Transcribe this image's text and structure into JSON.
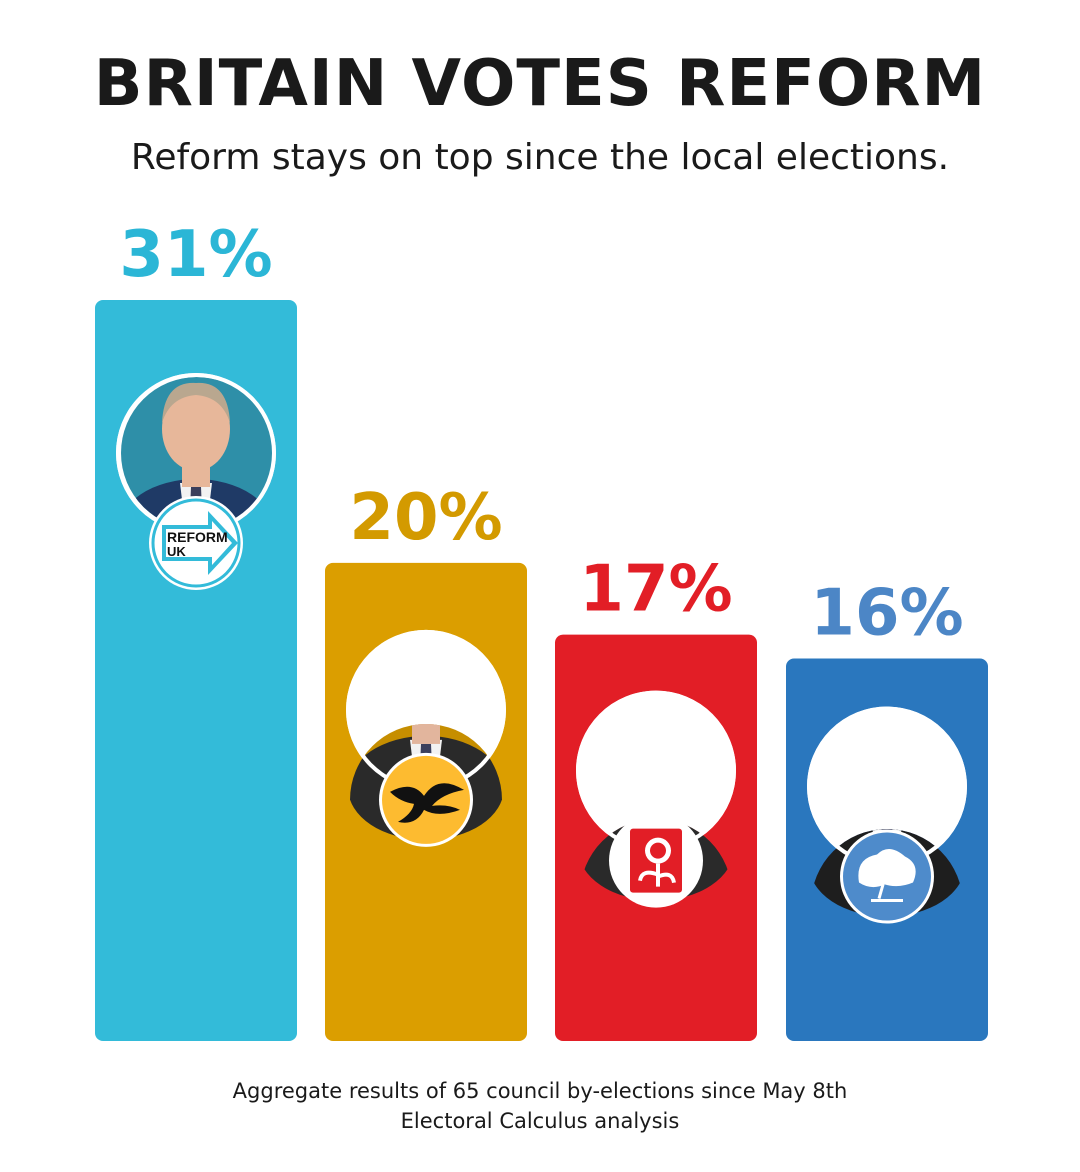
{
  "header": {
    "title": "BRITAIN VOTES REFORM",
    "subtitle": "Reform stays on top since the local elections."
  },
  "footer": {
    "line1": "Aggregate results of 65 council by-elections since May 8th",
    "line2": "Electoral Calculus analysis"
  },
  "logos": {
    "reform_line1": "REFORM",
    "reform_line2": "UK"
  },
  "chart_data": {
    "type": "bar",
    "title": "BRITAIN VOTES REFORM",
    "subtitle": "Reform stays on top since the local elections.",
    "values": [
      31,
      20,
      17,
      16
    ],
    "value_labels": [
      "31%",
      "20%",
      "17%",
      "16%"
    ],
    "colors": [
      "#33BBD9",
      "#DB9E00",
      "#E21E26",
      "#2A77BE"
    ],
    "value_label_colors": [
      "#2BB6D6",
      "#D39A00",
      "#E21E26",
      "#4C86C6"
    ],
    "party_icons": [
      "reform-uk-logo-icon",
      "lib-dem-bird-icon",
      "labour-rose-icon",
      "conservative-tree-icon"
    ],
    "ylim": [
      0,
      31
    ],
    "grid": false,
    "legend": "none"
  }
}
